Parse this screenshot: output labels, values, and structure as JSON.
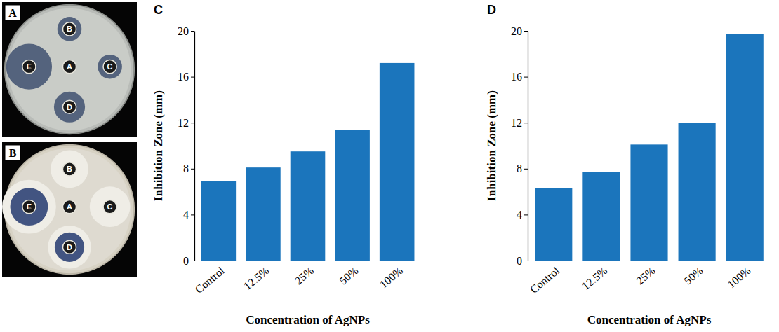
{
  "images": [
    {
      "panel": "A",
      "discs": [
        "B",
        "A",
        "C",
        "D",
        "E"
      ]
    },
    {
      "panel": "B",
      "discs": [
        "B",
        "A",
        "C",
        "D",
        "E"
      ]
    }
  ],
  "chart_data": [
    {
      "type": "bar",
      "panel": "C",
      "categories": [
        "Control",
        "12.5%",
        "25%",
        "50%",
        "100%"
      ],
      "values": [
        6.9,
        8.1,
        9.5,
        11.4,
        17.2
      ],
      "color": "#1b75bc",
      "x_label": "Concentration of AgNPs",
      "y_label": "Inhibition Zone (mm)",
      "ylim": [
        0,
        20
      ],
      "yticks": [
        0,
        4,
        8,
        12,
        16,
        20
      ]
    },
    {
      "type": "bar",
      "panel": "D",
      "categories": [
        "Control",
        "12.5%",
        "25%",
        "50%",
        "100%"
      ],
      "values": [
        6.3,
        7.7,
        10.1,
        12.0,
        19.7
      ],
      "color": "#1b75bc",
      "x_label": "Concentration of AgNPs",
      "y_label": "Inhibition Zone (mm)",
      "ylim": [
        0,
        20
      ],
      "yticks": [
        0,
        4,
        8,
        12,
        16,
        20
      ]
    }
  ]
}
